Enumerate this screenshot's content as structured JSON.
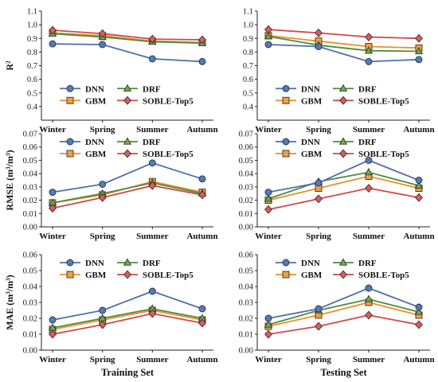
{
  "chart_data": [
    {
      "type": "line",
      "panel": "r2-training",
      "ylabel": "R²",
      "xlabel": "",
      "ylim": [
        0.3,
        1.1
      ],
      "yticks": [
        0.4,
        0.5,
        0.6,
        0.7,
        0.8,
        0.9,
        1.0,
        1.1
      ],
      "categories": [
        "Winter",
        "Spring",
        "Summer",
        "Autumn"
      ],
      "legend_position": "lower-center",
      "series": [
        {
          "name": "DNN",
          "values": [
            0.86,
            0.855,
            0.75,
            0.73
          ]
        },
        {
          "name": "DRF",
          "values": [
            0.935,
            0.91,
            0.875,
            0.865
          ]
        },
        {
          "name": "GBM",
          "values": [
            0.94,
            0.92,
            0.88,
            0.87
          ]
        },
        {
          "name": "SOBLE-Top5",
          "values": [
            0.96,
            0.935,
            0.895,
            0.89
          ]
        }
      ]
    },
    {
      "type": "line",
      "panel": "r2-testing",
      "ylabel": "",
      "xlabel": "",
      "ylim": [
        0.3,
        1.1
      ],
      "yticks": [
        0.4,
        0.5,
        0.6,
        0.7,
        0.8,
        0.9,
        1.0,
        1.1
      ],
      "categories": [
        "Winter",
        "Spring",
        "Summer",
        "Autumn"
      ],
      "legend_position": "lower-center",
      "series": [
        {
          "name": "DNN",
          "values": [
            0.855,
            0.84,
            0.73,
            0.745
          ]
        },
        {
          "name": "DRF",
          "values": [
            0.915,
            0.85,
            0.81,
            0.805
          ]
        },
        {
          "name": "GBM",
          "values": [
            0.92,
            0.88,
            0.84,
            0.83
          ]
        },
        {
          "name": "SOBLE-Top5",
          "values": [
            0.965,
            0.94,
            0.91,
            0.9
          ]
        }
      ]
    },
    {
      "type": "line",
      "panel": "rmse-training",
      "ylabel": "RMSE (m³/m³)",
      "xlabel": "",
      "ylim": [
        0,
        0.07
      ],
      "yticks": [
        0.0,
        0.01,
        0.02,
        0.03,
        0.04,
        0.05,
        0.06,
        0.07
      ],
      "categories": [
        "Winter",
        "Spring",
        "Summer",
        "Autumn"
      ],
      "legend_position": "top-center",
      "series": [
        {
          "name": "DNN",
          "values": [
            0.026,
            0.032,
            0.048,
            0.036
          ]
        },
        {
          "name": "DRF",
          "values": [
            0.018,
            0.025,
            0.033,
            0.025
          ]
        },
        {
          "name": "GBM",
          "values": [
            0.018,
            0.024,
            0.034,
            0.026
          ]
        },
        {
          "name": "SOBLE-Top5",
          "values": [
            0.014,
            0.022,
            0.031,
            0.024
          ]
        }
      ]
    },
    {
      "type": "line",
      "panel": "rmse-testing",
      "ylabel": "",
      "xlabel": "",
      "ylim": [
        0,
        0.07
      ],
      "yticks": [
        0.0,
        0.01,
        0.02,
        0.03,
        0.04,
        0.05,
        0.06,
        0.07
      ],
      "categories": [
        "Winter",
        "Spring",
        "Summer",
        "Autumn"
      ],
      "legend_position": "top-center",
      "series": [
        {
          "name": "DNN",
          "values": [
            0.026,
            0.033,
            0.05,
            0.035
          ]
        },
        {
          "name": "DRF",
          "values": [
            0.021,
            0.034,
            0.041,
            0.031
          ]
        },
        {
          "name": "GBM",
          "values": [
            0.02,
            0.029,
            0.038,
            0.029
          ]
        },
        {
          "name": "SOBLE-Top5",
          "values": [
            0.013,
            0.021,
            0.029,
            0.022
          ]
        }
      ]
    },
    {
      "type": "line",
      "panel": "mae-training",
      "ylabel": "MAE (m³/m³)",
      "xlabel": "Training Set",
      "ylim": [
        0,
        0.06
      ],
      "yticks": [
        0.0,
        0.01,
        0.02,
        0.03,
        0.04,
        0.05,
        0.06
      ],
      "categories": [
        "Winter",
        "Spring",
        "Summer",
        "Autumn"
      ],
      "legend_position": "top-center",
      "series": [
        {
          "name": "DNN",
          "values": [
            0.019,
            0.025,
            0.037,
            0.026
          ]
        },
        {
          "name": "DRF",
          "values": [
            0.014,
            0.02,
            0.026,
            0.02
          ]
        },
        {
          "name": "GBM",
          "values": [
            0.013,
            0.019,
            0.025,
            0.019
          ]
        },
        {
          "name": "SOBLE-Top5",
          "values": [
            0.01,
            0.016,
            0.023,
            0.017
          ]
        }
      ]
    },
    {
      "type": "line",
      "panel": "mae-testing",
      "ylabel": "",
      "xlabel": "Testing Set",
      "ylim": [
        0,
        0.06
      ],
      "yticks": [
        0.0,
        0.01,
        0.02,
        0.03,
        0.04,
        0.05,
        0.06
      ],
      "categories": [
        "Winter",
        "Spring",
        "Summer",
        "Autumn"
      ],
      "legend_position": "top-center",
      "series": [
        {
          "name": "DNN",
          "values": [
            0.02,
            0.026,
            0.039,
            0.027
          ]
        },
        {
          "name": "DRF",
          "values": [
            0.016,
            0.025,
            0.032,
            0.024
          ]
        },
        {
          "name": "GBM",
          "values": [
            0.015,
            0.022,
            0.03,
            0.022
          ]
        },
        {
          "name": "SOBLE-Top5",
          "values": [
            0.01,
            0.015,
            0.022,
            0.016
          ]
        }
      ]
    }
  ],
  "style": {
    "DNN": {
      "marker": "circle",
      "fill": "#4f7bbd",
      "line": "#4f6ea8"
    },
    "DRF": {
      "marker": "triangle",
      "fill": "#6fae4a",
      "line": "#4f8a3e"
    },
    "GBM": {
      "marker": "square",
      "fill": "#f0a040",
      "line": "#e8902a"
    },
    "SOBLE-Top5": {
      "marker": "diamond",
      "fill": "#e05a5a",
      "line": "#d04848"
    }
  }
}
